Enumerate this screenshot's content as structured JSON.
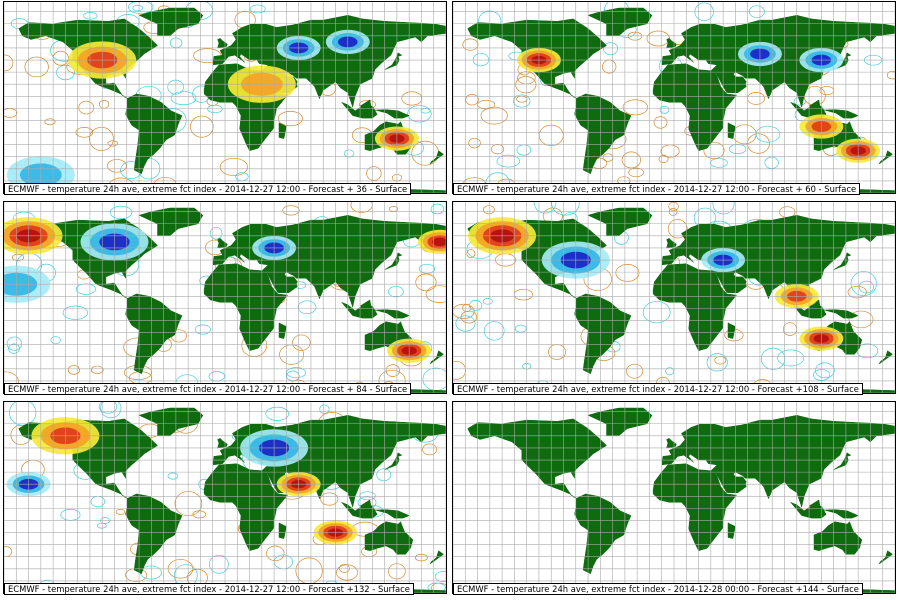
{
  "legend_colors": {
    "land": "#0e6b0e",
    "ocean": "#ffffff",
    "grid": "#aaaaaa",
    "cold_strong": "#1a24c4",
    "cold_medium": "#33b6e6",
    "cold_weak": "#a4ecf8",
    "warm_weak": "#f7e93a",
    "warm_medium": "#f4a326",
    "warm_strong": "#e03b1a",
    "warm_extreme": "#b3100e",
    "contour_warm": "#d88a2a",
    "contour_cold": "#3fcfe0"
  },
  "panels": [
    {
      "title": "ECMWF - temperature 24h ave, extreme fct index - 2014-12-27 12:00 - Forecast + 36 - Surface",
      "anomaly_fields": [
        {
          "type": "warm",
          "lon": -100,
          "lat": 40,
          "intensity": "high",
          "spread": "wide"
        },
        {
          "type": "warm",
          "lon": 30,
          "lat": 20,
          "intensity": "medium",
          "spread": "wide"
        },
        {
          "type": "warm",
          "lon": 140,
          "lat": -25,
          "intensity": "extreme",
          "spread": "medium"
        },
        {
          "type": "cold",
          "lon": 60,
          "lat": 50,
          "intensity": "strong",
          "spread": "medium"
        },
        {
          "type": "cold",
          "lon": 100,
          "lat": 55,
          "intensity": "strong",
          "spread": "medium"
        },
        {
          "type": "cold",
          "lon": -150,
          "lat": -55,
          "intensity": "medium",
          "spread": "wide"
        }
      ]
    },
    {
      "title": "ECMWF - temperature 24h ave, extreme fct index - 2014-12-27 12:00 - Forecast + 60 - Surface",
      "anomaly_fields": [
        {
          "type": "warm",
          "lon": -110,
          "lat": 40,
          "intensity": "extreme",
          "spread": "medium"
        },
        {
          "type": "cold",
          "lon": 70,
          "lat": 45,
          "intensity": "strong",
          "spread": "medium"
        },
        {
          "type": "cold",
          "lon": 120,
          "lat": 40,
          "intensity": "strong",
          "spread": "medium"
        },
        {
          "type": "warm",
          "lon": 120,
          "lat": -15,
          "intensity": "high",
          "spread": "medium"
        },
        {
          "type": "warm",
          "lon": 150,
          "lat": -35,
          "intensity": "extreme",
          "spread": "medium"
        }
      ]
    },
    {
      "title": "ECMWF - temperature 24h ave, extreme fct index - 2014-12-27 12:00 - Forecast + 84 - Surface",
      "anomaly_fields": [
        {
          "type": "warm",
          "lon": -160,
          "lat": 60,
          "intensity": "extreme",
          "spread": "wide"
        },
        {
          "type": "warm",
          "lon": 175,
          "lat": 55,
          "intensity": "extreme",
          "spread": "medium"
        },
        {
          "type": "cold",
          "lon": -90,
          "lat": 55,
          "intensity": "strong",
          "spread": "wide"
        },
        {
          "type": "cold",
          "lon": 40,
          "lat": 50,
          "intensity": "strong",
          "spread": "medium"
        },
        {
          "type": "warm",
          "lon": 150,
          "lat": -35,
          "intensity": "extreme",
          "spread": "medium"
        },
        {
          "type": "cold",
          "lon": -170,
          "lat": 20,
          "intensity": "medium",
          "spread": "wide"
        }
      ]
    },
    {
      "title": "ECMWF - temperature 24h ave, extreme fct index - 2014-12-27 12:00 - Forecast +108 - Surface",
      "anomaly_fields": [
        {
          "type": "warm",
          "lon": -140,
          "lat": 60,
          "intensity": "extreme",
          "spread": "wide"
        },
        {
          "type": "cold",
          "lon": -80,
          "lat": 40,
          "intensity": "strong",
          "spread": "wide"
        },
        {
          "type": "cold",
          "lon": 40,
          "lat": 40,
          "intensity": "strong",
          "spread": "medium"
        },
        {
          "type": "warm",
          "lon": 100,
          "lat": 10,
          "intensity": "high",
          "spread": "medium"
        },
        {
          "type": "warm",
          "lon": 120,
          "lat": -25,
          "intensity": "extreme",
          "spread": "medium"
        }
      ]
    },
    {
      "title": "ECMWF - temperature 24h ave, extreme fct index - 2014-12-27 12:00 - Forecast +132 - Surface",
      "anomaly_fields": [
        {
          "type": "warm",
          "lon": -130,
          "lat": 60,
          "intensity": "high",
          "spread": "wide"
        },
        {
          "type": "cold",
          "lon": -160,
          "lat": 20,
          "intensity": "strong",
          "spread": "medium"
        },
        {
          "type": "cold",
          "lon": 40,
          "lat": 50,
          "intensity": "strong",
          "spread": "wide"
        },
        {
          "type": "warm",
          "lon": 60,
          "lat": 20,
          "intensity": "extreme",
          "spread": "medium"
        },
        {
          "type": "warm",
          "lon": 90,
          "lat": -20,
          "intensity": "extreme",
          "spread": "medium"
        }
      ]
    },
    {
      "title": "ECMWF - temperature 24h ave, extreme fct index - 2014-12-28 00:00 - Forecast +144 - Surface",
      "anomaly_fields": []
    }
  ]
}
